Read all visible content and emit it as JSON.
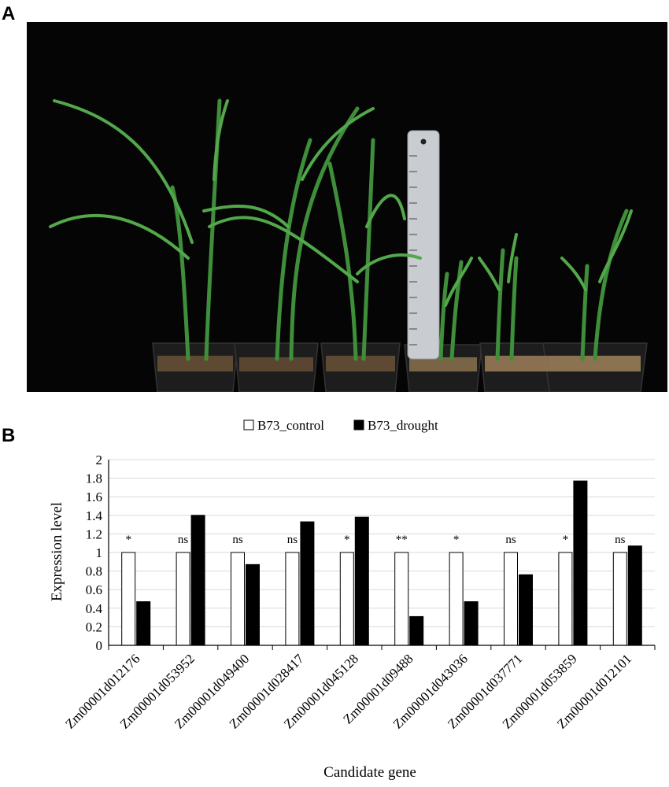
{
  "panels": {
    "a_label": "A",
    "b_label": "B"
  },
  "chart_data": {
    "type": "bar",
    "title": "",
    "xlabel": "Candidate gene",
    "ylabel": "Expression level",
    "ylim": [
      0,
      2
    ],
    "yticks": [
      "0",
      "0.2",
      "0.4",
      "0.6",
      "0.8",
      "1",
      "1.2",
      "1.4",
      "1.6",
      "1.8",
      "2"
    ],
    "legend_position": "top-center",
    "categories": [
      "Zm00001d012176",
      "Zm00001d053952",
      "Zm00001d049400",
      "Zm00001d028417",
      "Zm00001d045128",
      "Zm00001d09488",
      "Zm00001d043036",
      "Zm00001d037771",
      "Zm00001d053859",
      "Zm00001d012101"
    ],
    "series": [
      {
        "name": "B73_control",
        "color": "#ffffff",
        "values": [
          1,
          1,
          1,
          1,
          1,
          1,
          1,
          1,
          1,
          1
        ]
      },
      {
        "name": "B73_drought",
        "color": "#000000",
        "values": [
          0.47,
          1.4,
          0.87,
          1.33,
          1.38,
          0.31,
          0.47,
          0.76,
          1.77,
          1.07
        ]
      }
    ],
    "annotations": [
      "*",
      "ns",
      "ns",
      "ns",
      "*",
      "**",
      "*",
      "ns",
      "*",
      "ns"
    ]
  }
}
